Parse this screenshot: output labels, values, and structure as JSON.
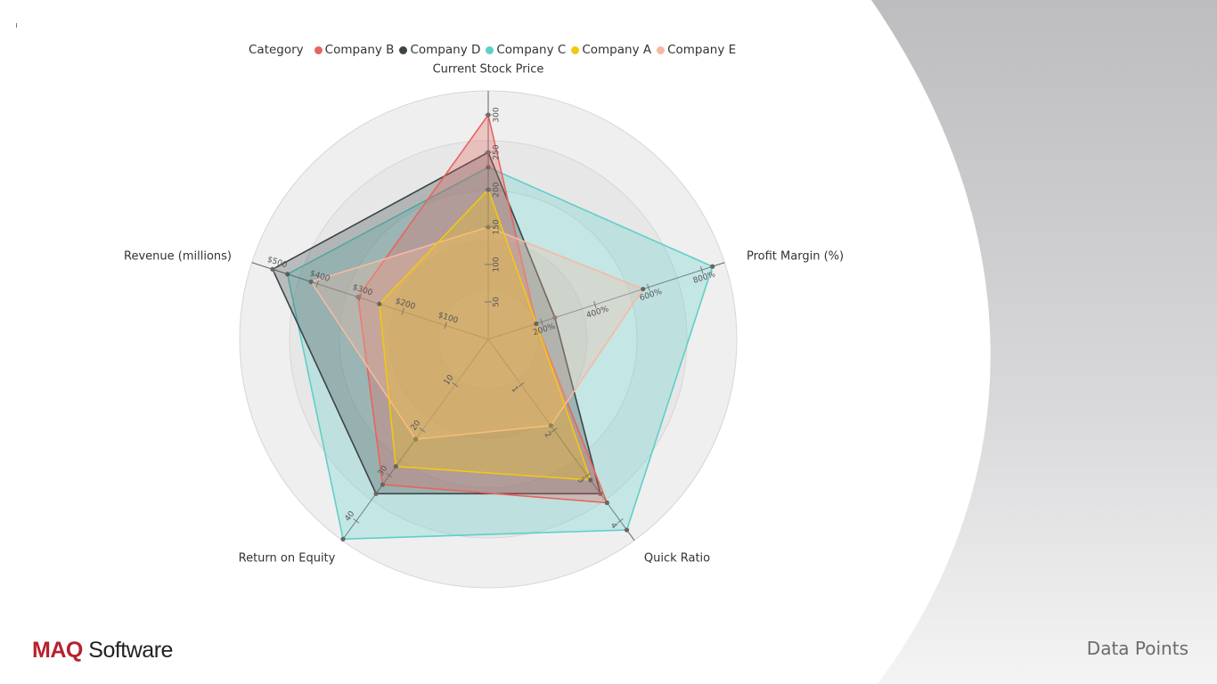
{
  "legend": {
    "title": "Category",
    "items": [
      {
        "label": "Company B",
        "color": "#e8645e"
      },
      {
        "label": "Company D",
        "color": "#3d4447"
      },
      {
        "label": "Company C",
        "color": "#5fcfc9"
      },
      {
        "label": "Company A",
        "color": "#f2c811"
      },
      {
        "label": "Company E",
        "color": "#f6b9a2"
      }
    ]
  },
  "chart_data": {
    "type": "radar",
    "axes": [
      {
        "label": "Current Stock Price",
        "max": 300,
        "ticks": [
          "50",
          "100",
          "150",
          "200",
          "250",
          "300"
        ]
      },
      {
        "label": "Profit Margin (%)",
        "max": 800,
        "ticks": [
          "200%",
          "400%",
          "600%",
          "800%"
        ]
      },
      {
        "label": "Quick Ratio",
        "max": 4,
        "ticks": [
          "1",
          "2",
          "3",
          "4"
        ]
      },
      {
        "label": "Return on Equity",
        "max": 40,
        "ticks": [
          "10",
          "20",
          "30",
          "40"
        ]
      },
      {
        "label": "Revenue (millions)",
        "max": 500,
        "ticks": [
          "$100",
          "$200",
          "$300",
          "$400",
          "$500"
        ]
      }
    ],
    "series": [
      {
        "name": "Company C",
        "color": "#5fcfc9",
        "values": [
          230,
          840,
          4.2,
          44,
          470
        ]
      },
      {
        "name": "Company D",
        "color": "#3d4447",
        "values": [
          250,
          250,
          3.4,
          34,
          505
        ]
      },
      {
        "name": "Company B",
        "color": "#e8645e",
        "values": [
          300,
          180,
          3.6,
          32,
          305
        ]
      },
      {
        "name": "Company E",
        "color": "#f6b9a2",
        "values": [
          150,
          580,
          1.9,
          22,
          415
        ]
      },
      {
        "name": "Company A",
        "color": "#f2c811",
        "values": [
          200,
          180,
          3.1,
          28,
          255
        ]
      }
    ]
  },
  "branding": {
    "brand_mark": "MAQ",
    "brand_name": "Software",
    "page_label": "Data Points"
  }
}
